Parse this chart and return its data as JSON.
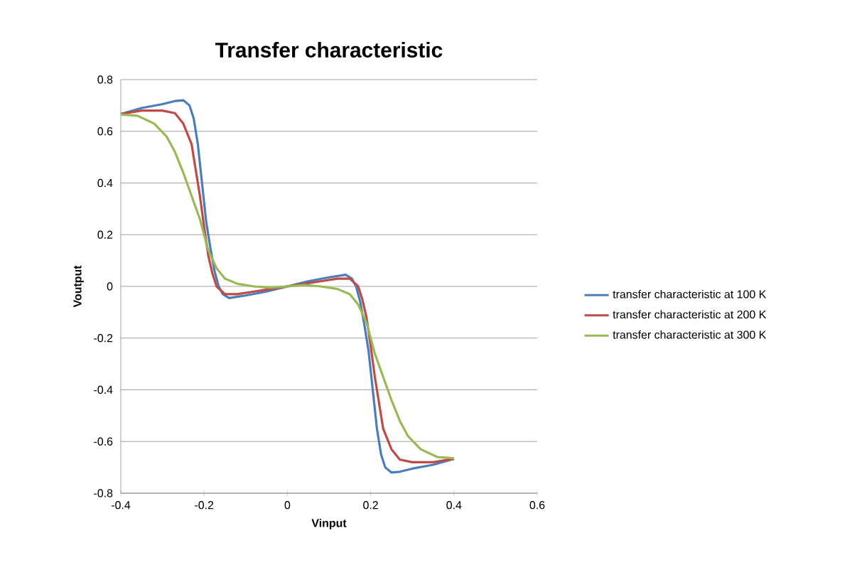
{
  "chart_data": {
    "type": "line",
    "title": "Transfer characteristic",
    "xlabel": "Vinput",
    "ylabel": "Voutput",
    "xlim": [
      -0.4,
      0.6
    ],
    "xticks": [
      -0.4,
      -0.2,
      0,
      0.2,
      0.4,
      0.6
    ],
    "ylim": [
      -0.8,
      0.8
    ],
    "yticks": [
      -0.8,
      -0.6,
      -0.4,
      -0.2,
      0,
      0.2,
      0.4,
      0.6,
      0.8
    ],
    "grid": "y",
    "legend": "right",
    "marker": "none",
    "line_style": "solid",
    "series": [
      {
        "name": "transfer characteristic at 100 K",
        "color": "#4a7ebb",
        "x": [
          -0.4,
          -0.35,
          -0.3,
          -0.27,
          -0.25,
          -0.235,
          -0.225,
          -0.215,
          -0.205,
          -0.195,
          -0.185,
          -0.175,
          -0.165,
          -0.155,
          -0.14,
          -0.12,
          -0.1,
          -0.05,
          0,
          0.05,
          0.1,
          0.12,
          0.14,
          0.155,
          0.165,
          0.175,
          0.185,
          0.195,
          0.205,
          0.215,
          0.225,
          0.235,
          0.25,
          0.27,
          0.3,
          0.35,
          0.4
        ],
        "values": [
          0.667,
          0.69,
          0.705,
          0.717,
          0.72,
          0.7,
          0.65,
          0.55,
          0.4,
          0.25,
          0.15,
          0.06,
          0,
          -0.03,
          -0.045,
          -0.04,
          -0.035,
          -0.02,
          0,
          0.02,
          0.035,
          0.04,
          0.045,
          0.03,
          0,
          -0.06,
          -0.15,
          -0.25,
          -0.4,
          -0.55,
          -0.65,
          -0.7,
          -0.72,
          -0.717,
          -0.705,
          -0.69,
          -0.667
        ]
      },
      {
        "name": "transfer characteristic at 200 K",
        "color": "#be4b48",
        "x": [
          -0.4,
          -0.35,
          -0.3,
          -0.27,
          -0.25,
          -0.23,
          -0.22,
          -0.21,
          -0.2,
          -0.19,
          -0.18,
          -0.17,
          -0.15,
          -0.12,
          -0.08,
          -0.04,
          0,
          0.04,
          0.08,
          0.12,
          0.15,
          0.17,
          0.18,
          0.19,
          0.2,
          0.21,
          0.22,
          0.23,
          0.25,
          0.27,
          0.3,
          0.35,
          0.4
        ],
        "values": [
          0.667,
          0.68,
          0.68,
          0.67,
          0.63,
          0.55,
          0.45,
          0.35,
          0.23,
          0.12,
          0.05,
          0,
          -0.03,
          -0.03,
          -0.02,
          -0.01,
          0,
          0.01,
          0.02,
          0.03,
          0.03,
          0,
          -0.05,
          -0.12,
          -0.23,
          -0.35,
          -0.45,
          -0.55,
          -0.63,
          -0.67,
          -0.68,
          -0.68,
          -0.667
        ]
      },
      {
        "name": "transfer characteristic at 300 K",
        "color": "#98b954",
        "x": [
          -0.4,
          -0.36,
          -0.32,
          -0.29,
          -0.27,
          -0.25,
          -0.23,
          -0.21,
          -0.2,
          -0.19,
          -0.17,
          -0.15,
          -0.12,
          -0.08,
          -0.04,
          0,
          0.04,
          0.08,
          0.12,
          0.15,
          0.17,
          0.19,
          0.2,
          0.21,
          0.23,
          0.25,
          0.27,
          0.29,
          0.32,
          0.36,
          0.4
        ],
        "values": [
          0.665,
          0.66,
          0.63,
          0.58,
          0.52,
          0.44,
          0.35,
          0.26,
          0.2,
          0.14,
          0.07,
          0.03,
          0.01,
          0,
          -0.005,
          0,
          0.005,
          0,
          -0.01,
          -0.03,
          -0.07,
          -0.14,
          -0.2,
          -0.26,
          -0.35,
          -0.44,
          -0.52,
          -0.58,
          -0.63,
          -0.66,
          -0.665
        ]
      }
    ]
  }
}
